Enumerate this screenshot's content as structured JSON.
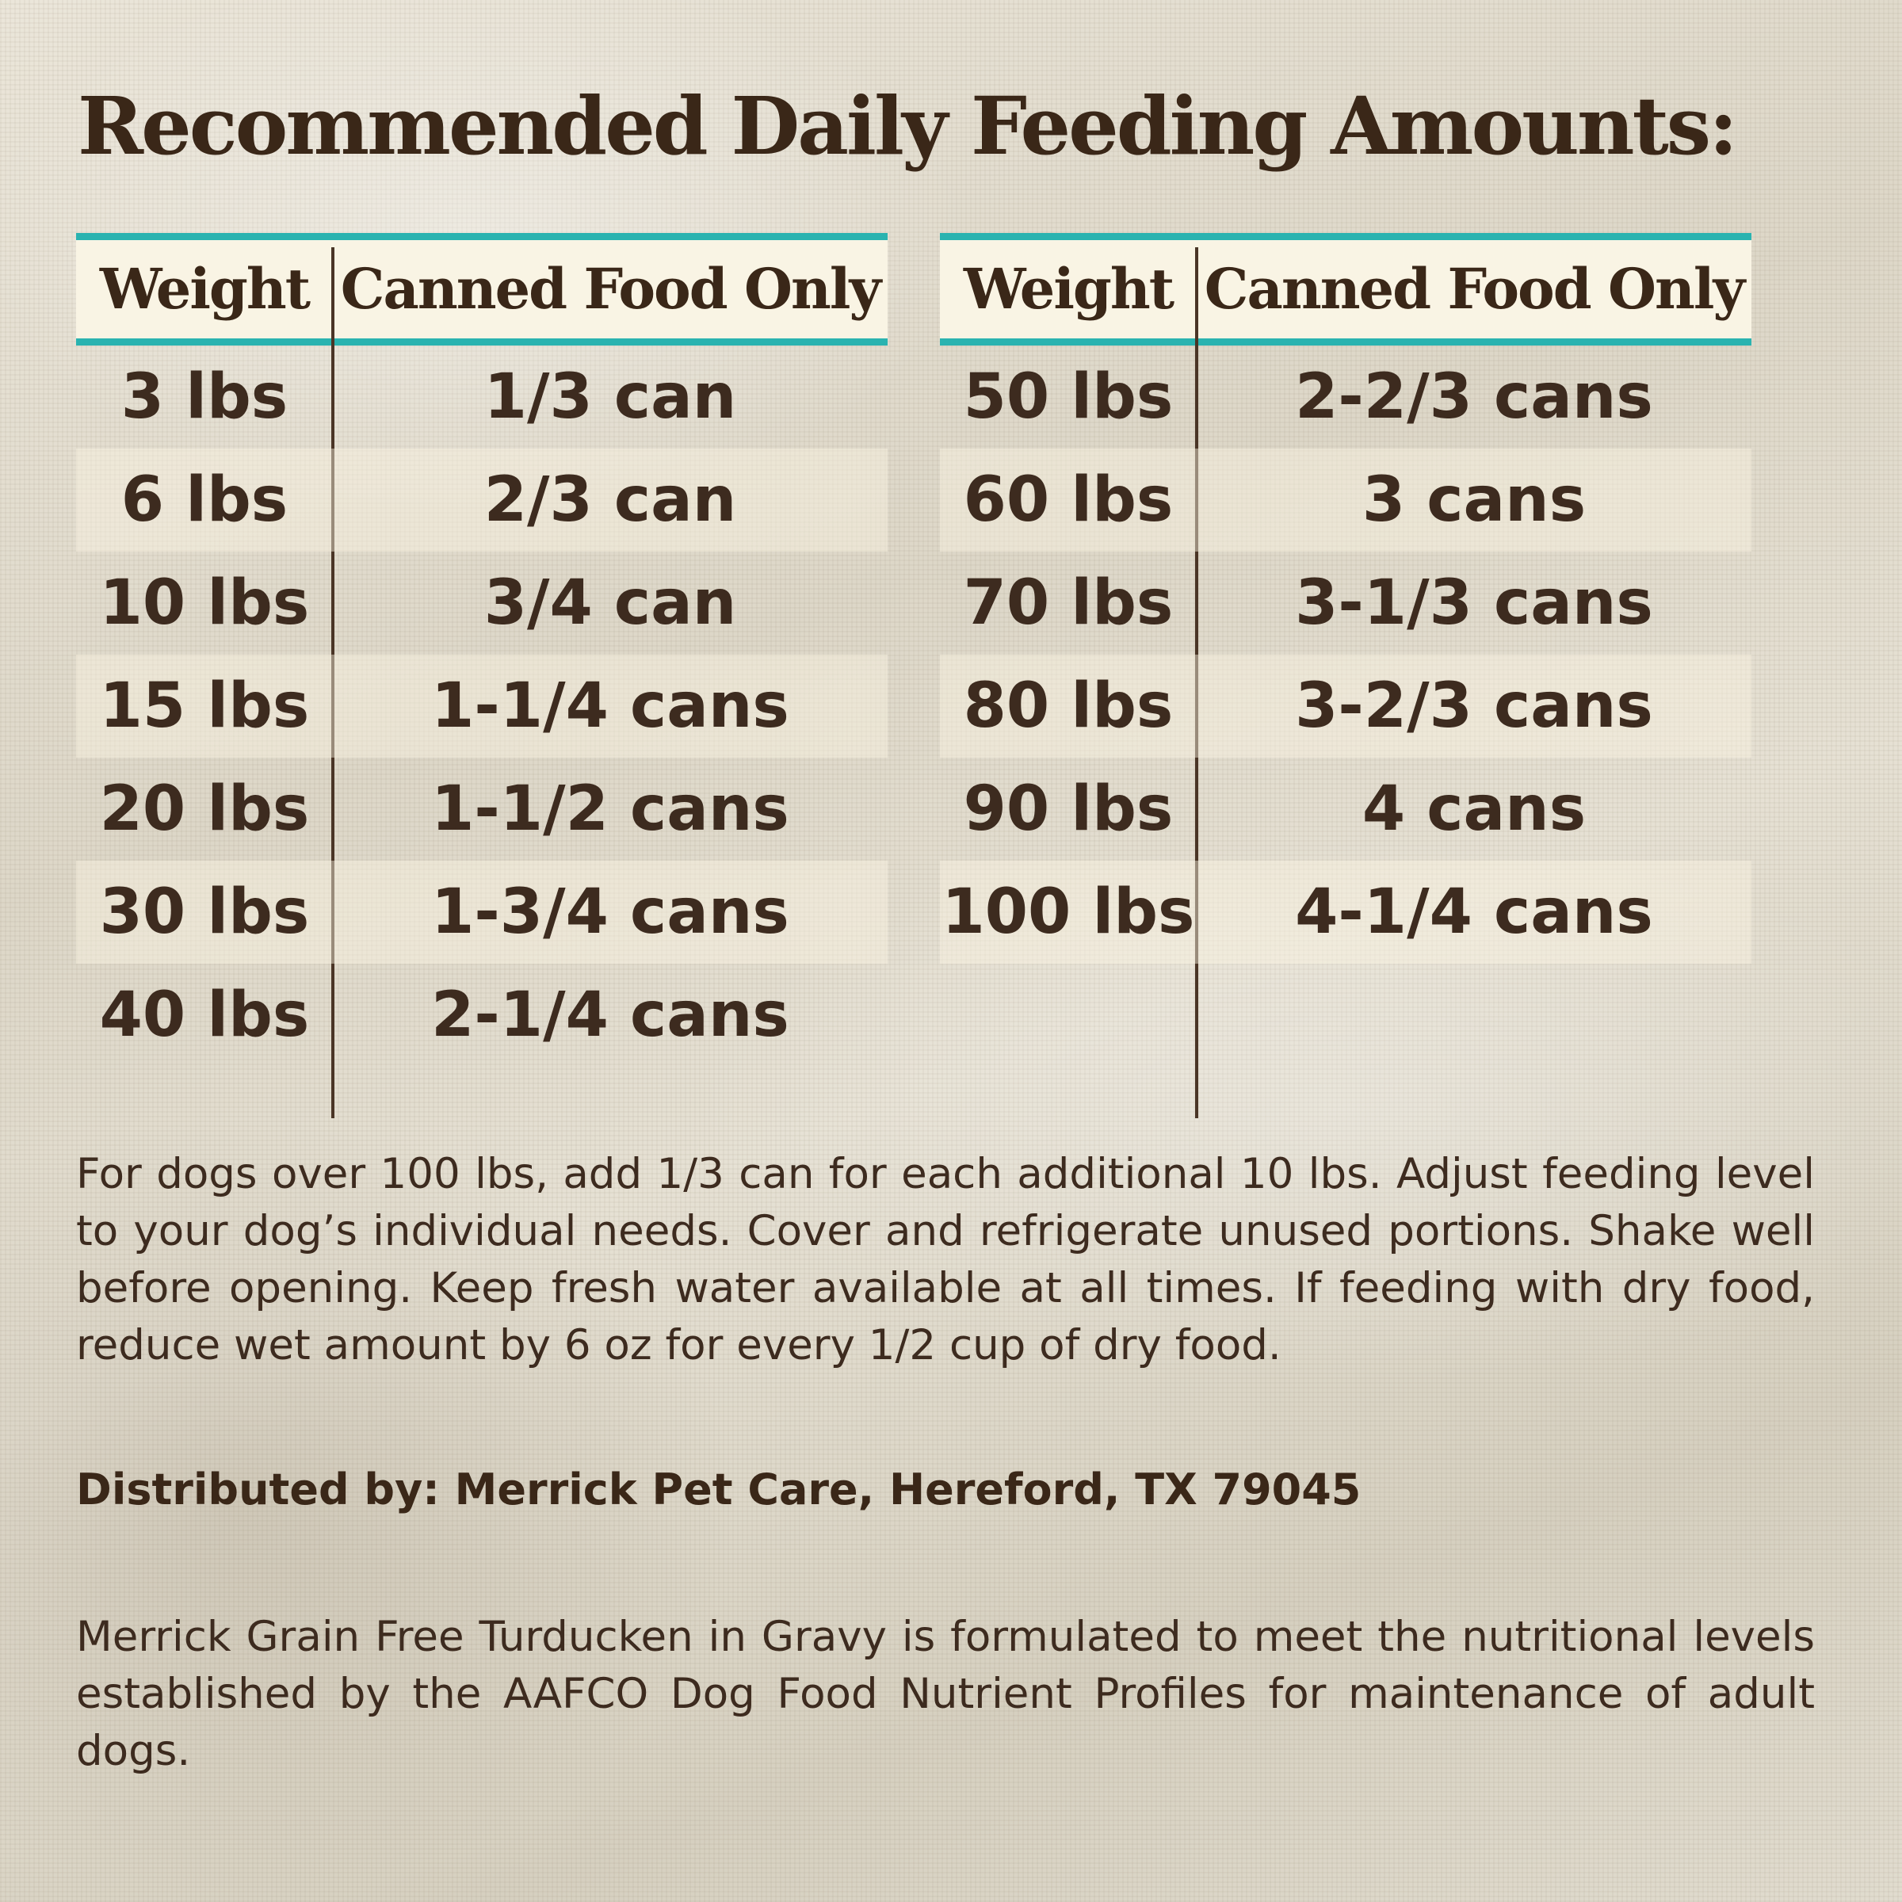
{
  "title": "Recommended Daily Feeding Amounts:",
  "tables": [
    {
      "headers": {
        "weight": "Weight",
        "amount": "Canned Food Only"
      },
      "rows": [
        {
          "weight": "3 lbs",
          "amount": "1/3 can"
        },
        {
          "weight": "6 lbs",
          "amount": "2/3 can"
        },
        {
          "weight": "10 lbs",
          "amount": "3/4 can"
        },
        {
          "weight": "15 lbs",
          "amount": "1-1/4 cans"
        },
        {
          "weight": "20 lbs",
          "amount": "1-1/2 cans"
        },
        {
          "weight": "30 lbs",
          "amount": "1-3/4 cans"
        },
        {
          "weight": "40 lbs",
          "amount": "2-1/4 cans"
        }
      ]
    },
    {
      "headers": {
        "weight": "Weight",
        "amount": "Canned Food Only"
      },
      "rows": [
        {
          "weight": "50 lbs",
          "amount": "2-2/3 cans"
        },
        {
          "weight": "60 lbs",
          "amount": "3 cans"
        },
        {
          "weight": "70 lbs",
          "amount": "3-1/3 cans"
        },
        {
          "weight": "80 lbs",
          "amount": "3-2/3 cans"
        },
        {
          "weight": "90 lbs",
          "amount": "4 cans"
        },
        {
          "weight": "100 lbs",
          "amount": "4-1/4 cans"
        }
      ]
    }
  ],
  "instructions": "For dogs over 100 lbs, add 1/3 can for each additional 10 lbs. Adjust feeding level to your dog’s individual needs. Cover and refrigerate unused portions. Shake well before opening. Keep fresh water available at all times. If feeding with dry food, reduce wet amount by 6 oz for every 1/2 cup of dry food.",
  "distributor": "Distributed by: Merrick Pet Care, Hereford, TX 79045",
  "aafco_statement": "Merrick Grain Free Turducken in Gravy is formulated to meet the nutritional levels established by the AAFCO Dog Food Nutrient Profiles for maintenance of adult dogs.",
  "colors": {
    "accent": "#2ab3b0",
    "text": "#3d2b1f",
    "header_bg": "#f9f4e4"
  }
}
